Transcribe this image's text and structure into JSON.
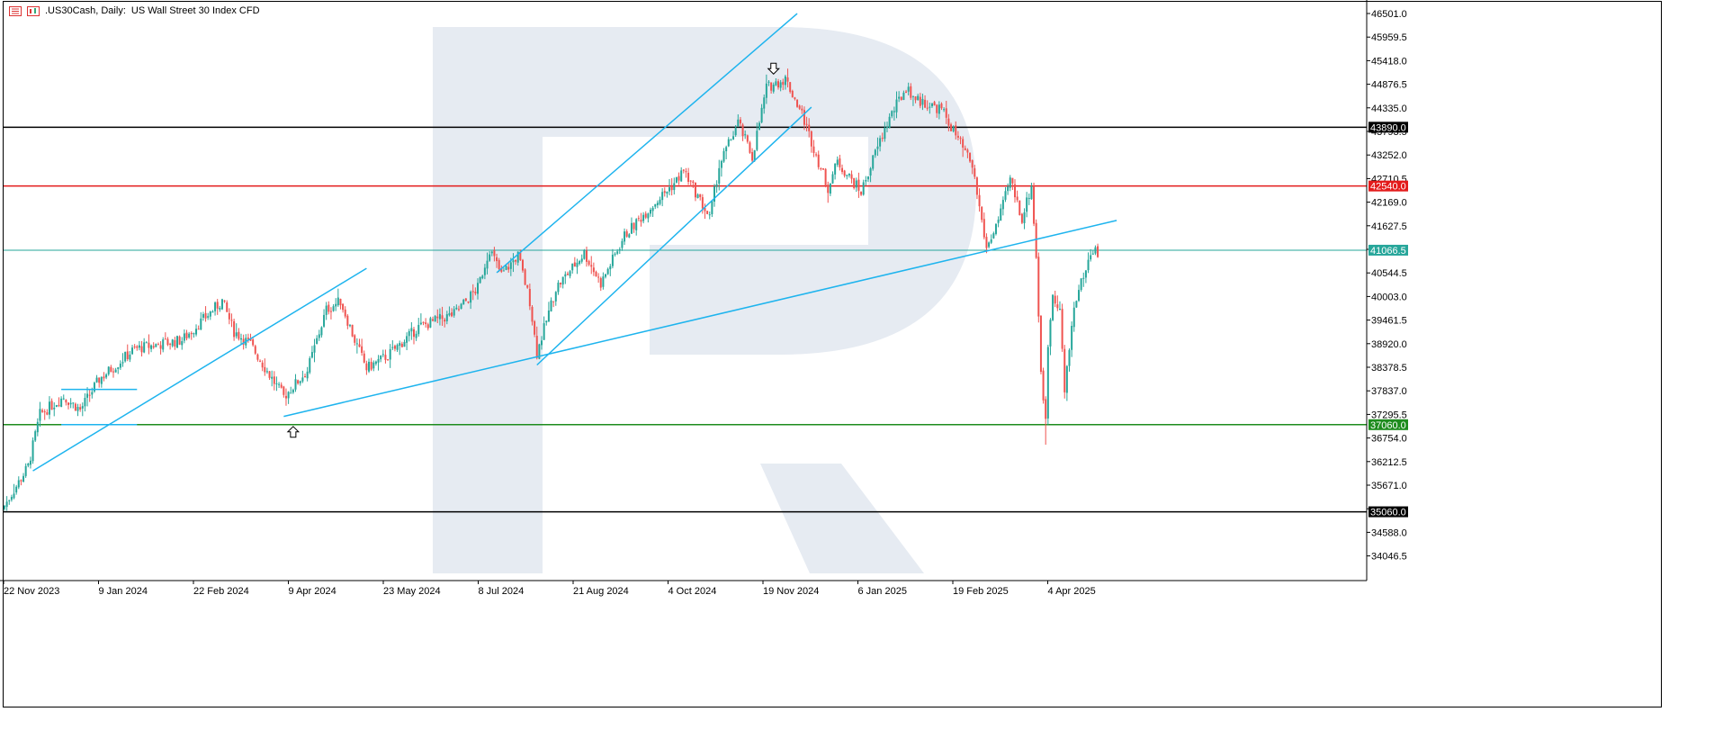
{
  "header": {
    "symbol": ".US30Cash, Daily:",
    "description": "US Wall Street 30 Index CFD"
  },
  "colors": {
    "background": "#ffffff",
    "bull": "#26a69a",
    "bear": "#ef5350",
    "trend_line": "#1eb4ee",
    "level_black": "#000000",
    "level_red": "#e31b1b",
    "level_green": "#1e8c1e",
    "current_price": "#26a69a",
    "watermark": "#e6ebf2"
  },
  "chart_data": {
    "type": "candlestick",
    "y_ticks": [
      46501.0,
      45959.5,
      45418.0,
      44876.5,
      44335.0,
      43793.5,
      43252.0,
      42710.5,
      42169.0,
      41627.5,
      41086.0,
      40544.5,
      40003.0,
      39461.5,
      38920.0,
      38378.5,
      37837.0,
      37295.5,
      36754.0,
      36212.5,
      35671.0,
      35129.5,
      34588.0,
      34046.5
    ],
    "y_tick_labels": [
      "46501.0",
      "45959.5",
      "45418.0",
      "44876.5",
      "44335.0",
      "43793.5",
      "43252.0",
      "42710.5",
      "42169.0",
      "41627.5",
      "",
      "40544.5",
      "40003.0",
      "39461.5",
      "38920.0",
      "38378.5",
      "37837.0",
      "37295.5",
      "36754.0",
      "36212.5",
      "35671.0",
      "",
      "34588.0",
      "34046.5"
    ],
    "ylim": [
      33650,
      46750
    ],
    "x_labels": [
      "22 Nov 2023",
      "9 Jan 2024",
      "22 Feb 2024",
      "9 Apr 2024",
      "23 May 2024",
      "8 Jul 2024",
      "21 Aug 2024",
      "4 Oct 2024",
      "19 Nov 2024",
      "6 Jan 2025",
      "19 Feb 2025",
      "4 Apr 2025"
    ],
    "horizontal_levels": [
      {
        "value": 43890.0,
        "label": "43890.0",
        "color": "#000000"
      },
      {
        "value": 42540.0,
        "label": "42540.0",
        "color": "#e31b1b"
      },
      {
        "value": 41066.5,
        "label": "41066.5",
        "color": "#26a69a"
      },
      {
        "value": 37060.0,
        "label": "37060.0",
        "color": "#1e8c1e"
      },
      {
        "value": 35060.0,
        "label": "35060.0",
        "color": "#000000"
      }
    ],
    "anchors": [
      {
        "i": 0,
        "c": 35200
      },
      {
        "i": 10,
        "c": 36100
      },
      {
        "i": 15,
        "c": 37300
      },
      {
        "i": 25,
        "c": 37700
      },
      {
        "i": 32,
        "c": 37400
      },
      {
        "i": 40,
        "c": 38100
      },
      {
        "i": 55,
        "c": 38800
      },
      {
        "i": 75,
        "c": 39000
      },
      {
        "i": 92,
        "c": 39900
      },
      {
        "i": 97,
        "c": 39200
      },
      {
        "i": 104,
        "c": 38900
      },
      {
        "i": 112,
        "c": 38200
      },
      {
        "i": 118,
        "c": 37700
      },
      {
        "i": 128,
        "c": 38300
      },
      {
        "i": 136,
        "c": 39700
      },
      {
        "i": 142,
        "c": 39900
      },
      {
        "i": 148,
        "c": 39000
      },
      {
        "i": 153,
        "c": 38350
      },
      {
        "i": 162,
        "c": 38650
      },
      {
        "i": 175,
        "c": 39300
      },
      {
        "i": 190,
        "c": 39600
      },
      {
        "i": 200,
        "c": 40200
      },
      {
        "i": 205,
        "c": 41100
      },
      {
        "i": 210,
        "c": 40500
      },
      {
        "i": 217,
        "c": 40950
      },
      {
        "i": 222,
        "c": 39900
      },
      {
        "i": 225,
        "c": 38700
      },
      {
        "i": 233,
        "c": 40200
      },
      {
        "i": 245,
        "c": 41000
      },
      {
        "i": 252,
        "c": 40300
      },
      {
        "i": 262,
        "c": 41400
      },
      {
        "i": 272,
        "c": 42000
      },
      {
        "i": 283,
        "c": 42600
      },
      {
        "i": 287,
        "c": 42900
      },
      {
        "i": 293,
        "c": 42300
      },
      {
        "i": 298,
        "c": 41800
      },
      {
        "i": 302,
        "c": 43000
      },
      {
        "i": 310,
        "c": 44000
      },
      {
        "i": 316,
        "c": 43200
      },
      {
        "i": 322,
        "c": 44800
      },
      {
        "i": 330,
        "c": 45000
      },
      {
        "i": 337,
        "c": 44200
      },
      {
        "i": 344,
        "c": 43100
      },
      {
        "i": 348,
        "c": 42500
      },
      {
        "i": 352,
        "c": 43100
      },
      {
        "i": 362,
        "c": 42400
      },
      {
        "i": 368,
        "c": 43300
      },
      {
        "i": 374,
        "c": 44100
      },
      {
        "i": 381,
        "c": 44800
      },
      {
        "i": 386,
        "c": 44500
      },
      {
        "i": 396,
        "c": 44300
      },
      {
        "i": 402,
        "c": 43700
      },
      {
        "i": 409,
        "c": 43000
      },
      {
        "i": 415,
        "c": 41100
      },
      {
        "i": 421,
        "c": 41900
      },
      {
        "i": 425,
        "c": 42700
      },
      {
        "i": 430,
        "c": 41800
      },
      {
        "i": 434,
        "c": 42550
      },
      {
        "i": 436,
        "c": 40900
      },
      {
        "i": 438,
        "c": 38300
      },
      {
        "i": 440,
        "c": 37100
      },
      {
        "i": 441,
        "c": 38900
      },
      {
        "i": 443,
        "c": 40100
      },
      {
        "i": 446,
        "c": 39700
      },
      {
        "i": 448,
        "c": 37800
      },
      {
        "i": 452,
        "c": 39800
      },
      {
        "i": 456,
        "c": 40500
      },
      {
        "i": 460,
        "c": 41100
      },
      {
        "i": 462,
        "c": 41000
      }
    ],
    "candle_count": 463,
    "lows": [
      {
        "i": 440,
        "l": 36600
      }
    ],
    "trend_lines": [
      {
        "from": [
          12,
          36000
        ],
        "to": [
          153,
          40650
        ]
      },
      {
        "from": [
          118,
          37250
        ],
        "to": [
          470,
          41750
        ]
      },
      {
        "from": [
          208,
          40550
        ],
        "to": [
          335,
          46500
        ]
      },
      {
        "from": [
          225,
          38430
        ],
        "to": [
          341,
          44350
        ]
      }
    ],
    "channel_boxes": [
      {
        "top": 37870,
        "bottom": 37060,
        "from": 24,
        "to": 56
      }
    ],
    "arrows": [
      {
        "i": 122,
        "value": 37060,
        "direction": "up"
      },
      {
        "i": 325,
        "value": 45400,
        "direction": "down"
      }
    ]
  }
}
